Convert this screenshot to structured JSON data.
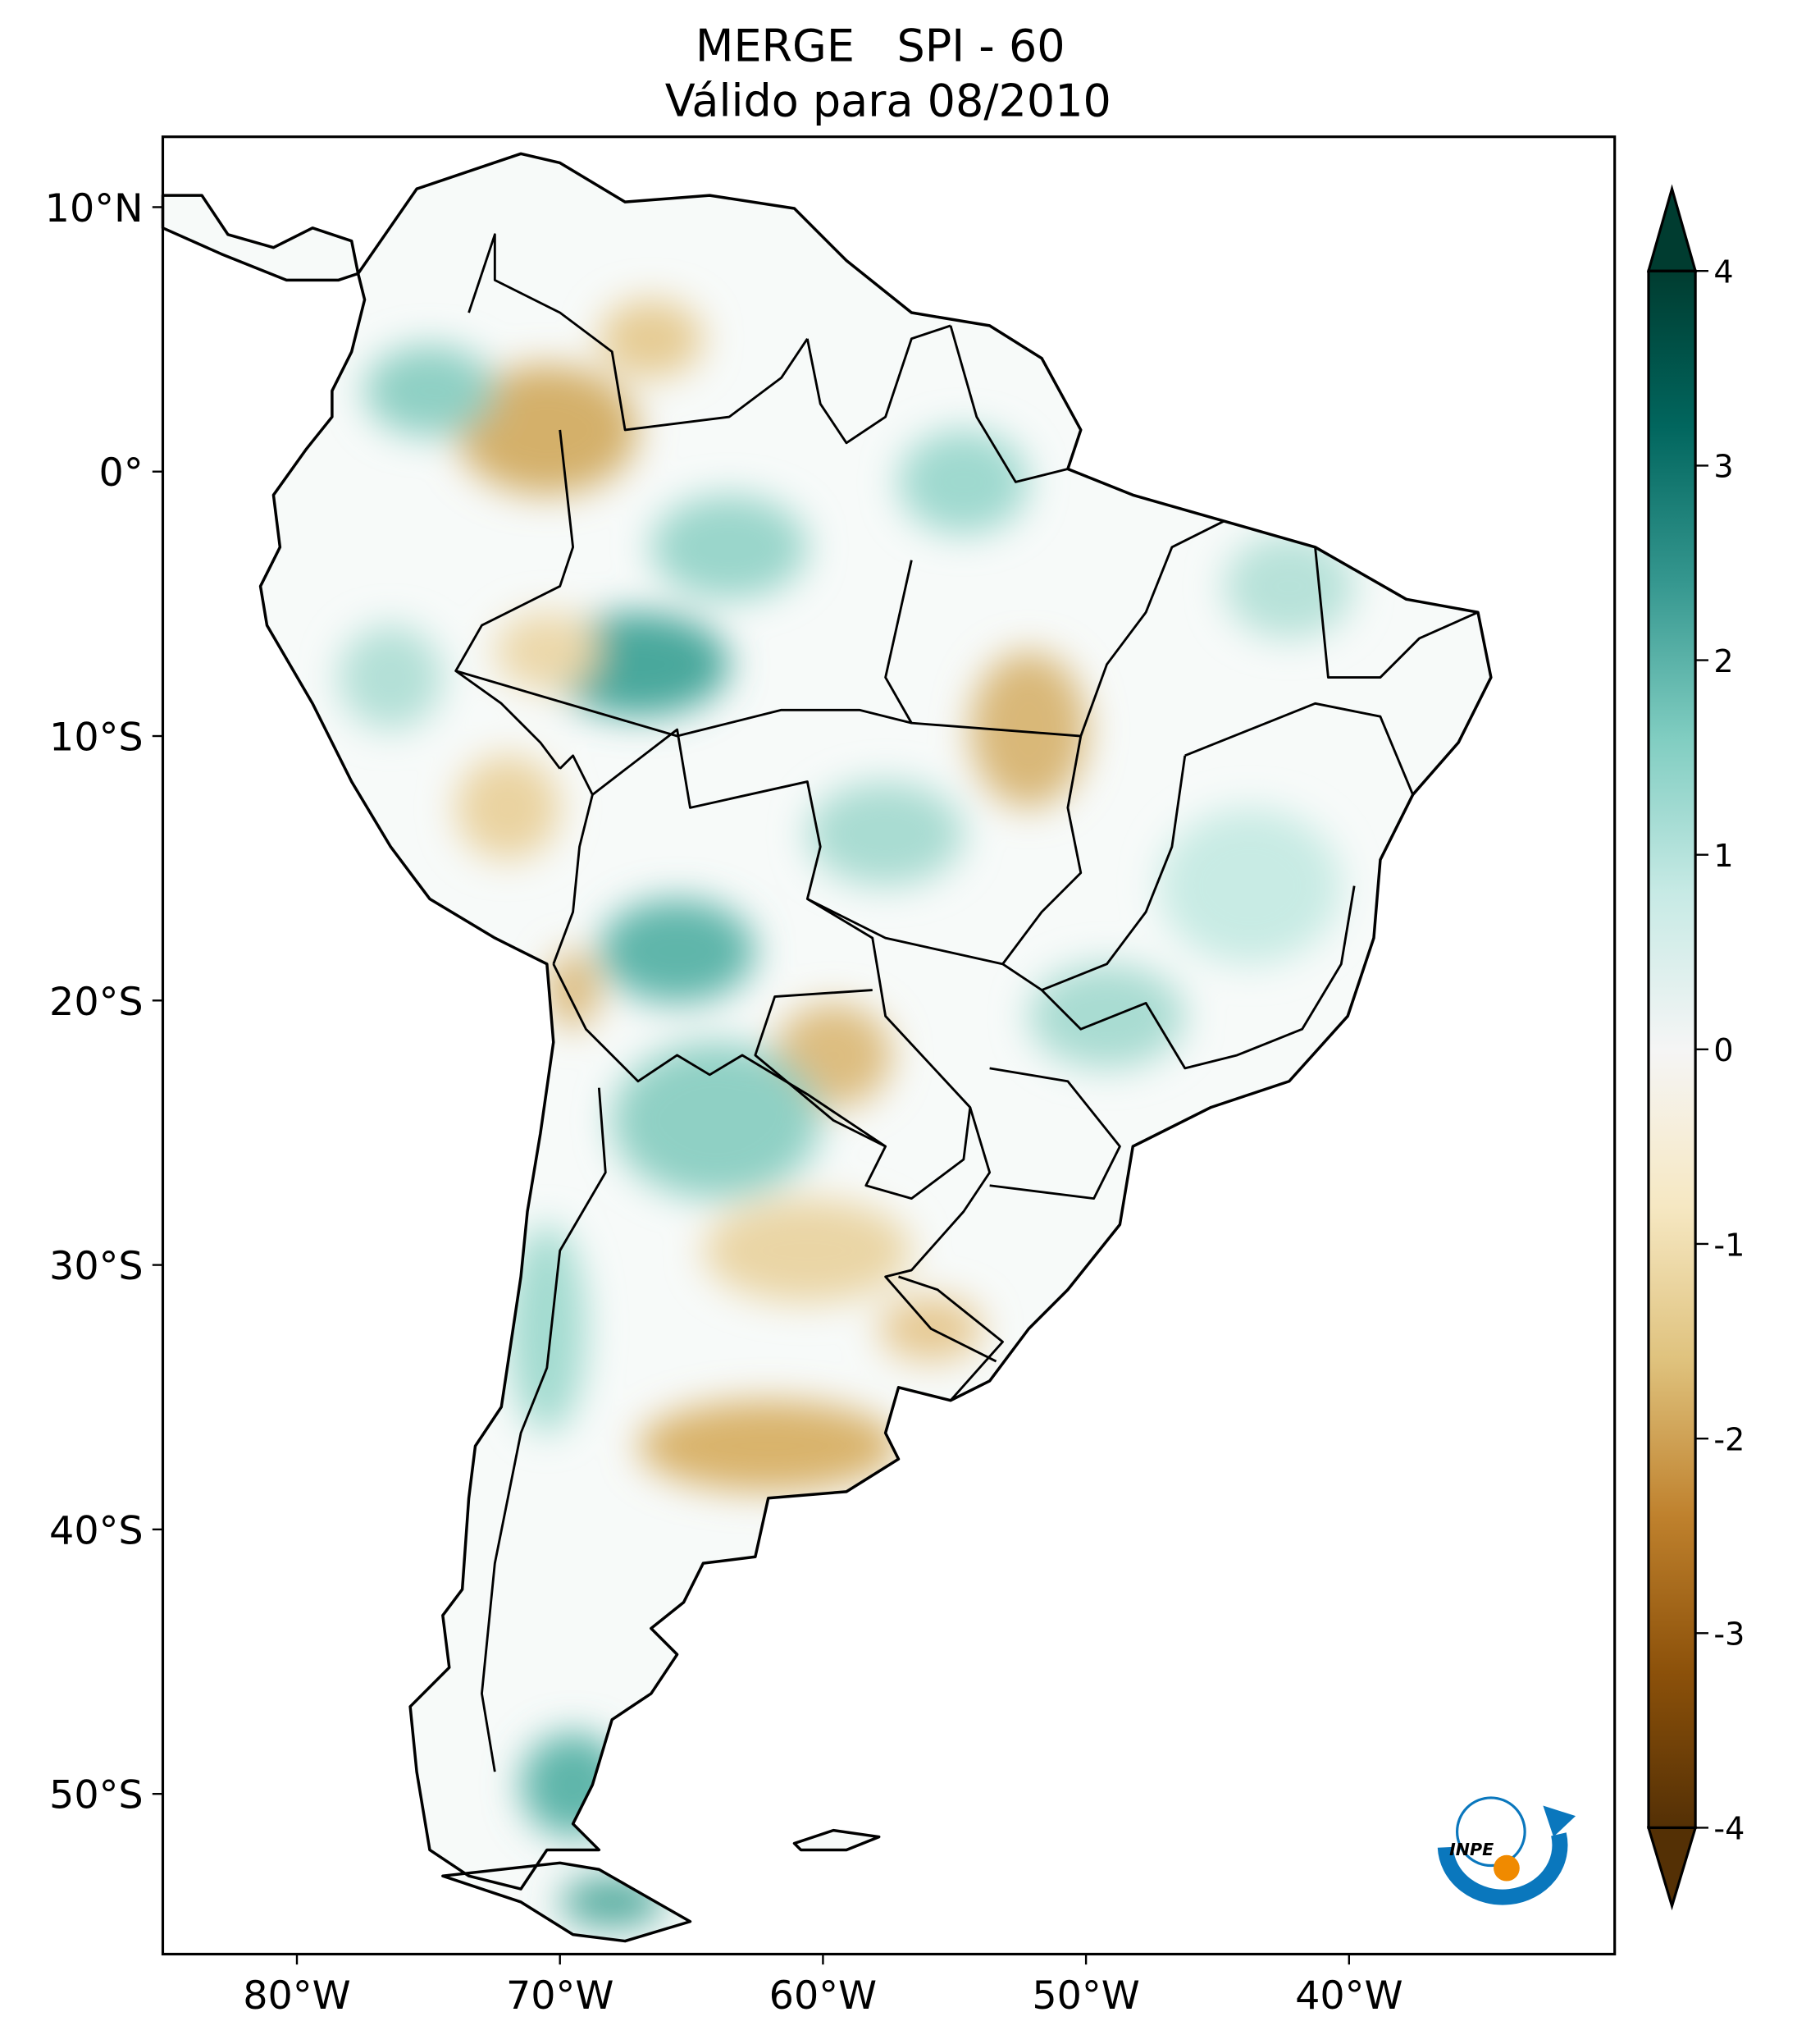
{
  "chart_data": {
    "type": "heatmap",
    "title": "MERGE   SPI - 60",
    "subtitle": "Válido para 08/2010",
    "xlabel": "",
    "ylabel": "",
    "xlim": [
      -85,
      -30
    ],
    "ylim": [
      -56,
      12.7
    ],
    "x_ticks": [
      {
        "value": -80,
        "label": "80°W"
      },
      {
        "value": -70,
        "label": "70°W"
      },
      {
        "value": -60,
        "label": "60°W"
      },
      {
        "value": -50,
        "label": "50°W"
      },
      {
        "value": -40,
        "label": "40°W"
      }
    ],
    "y_ticks": [
      {
        "value": 10,
        "label": "10°N"
      },
      {
        "value": 0,
        "label": "0°"
      },
      {
        "value": -10,
        "label": "10°S"
      },
      {
        "value": -20,
        "label": "20°S"
      },
      {
        "value": -30,
        "label": "30°S"
      },
      {
        "value": -40,
        "label": "40°S"
      },
      {
        "value": -50,
        "label": "50°S"
      }
    ],
    "colorbar": {
      "vmin": -4,
      "vmax": 4,
      "extend": "both",
      "colormap": "BrBG",
      "ticks": [
        {
          "value": 4,
          "label": "4"
        },
        {
          "value": 3,
          "label": "3"
        },
        {
          "value": 2,
          "label": "2"
        },
        {
          "value": 1,
          "label": "1"
        },
        {
          "value": 0,
          "label": "0"
        },
        {
          "value": -1,
          "label": "-1"
        },
        {
          "value": -2,
          "label": "-2"
        },
        {
          "value": -3,
          "label": "-3"
        },
        {
          "value": -4,
          "label": "-4"
        }
      ],
      "colors": [
        "#543005",
        "#8c510a",
        "#bf812d",
        "#dfc27d",
        "#f6e8c3",
        "#f5f5f5",
        "#c7eae5",
        "#80cdc1",
        "#35978f",
        "#01665e",
        "#003c30"
      ]
    }
  },
  "logo": {
    "text": "INPE",
    "blue": "#0a77bd",
    "orange": "#f08a00"
  }
}
